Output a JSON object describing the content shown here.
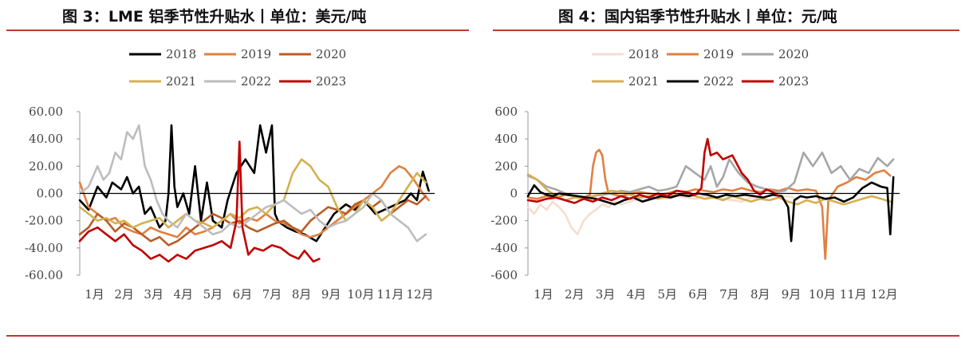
{
  "titles": {
    "left": "图 3：LME 铝季节性升贴水丨单位：美元/吨",
    "right": "图 4：国内铝季节性升贴水丨单位：元/吨"
  },
  "chart_data": [
    {
      "type": "line",
      "title": "图 3：LME 铝季节性升贴水丨单位：美元/吨",
      "xlabel": "",
      "ylabel": "",
      "x_ticks": [
        "1月",
        "2月",
        "3月",
        "4月",
        "5月",
        "6月",
        "7月",
        "8月",
        "9月",
        "10月",
        "11月",
        "12月"
      ],
      "ylim": [
        -60,
        60
      ],
      "y_ticks": [
        "60.00",
        "40.00",
        "20.00",
        "0.00",
        "-20.00",
        "-40.00",
        "-60.00"
      ],
      "legend": "top",
      "series": [
        {
          "name": "2018",
          "color": "#000000",
          "x": [
            0,
            0.3,
            0.6,
            0.9,
            1.1,
            1.4,
            1.6,
            1.8,
            2.0,
            2.2,
            2.4,
            2.7,
            2.9,
            3.0,
            3.1,
            3.2,
            3.3,
            3.5,
            3.7,
            3.9,
            4.1,
            4.3,
            4.5,
            4.8,
            5.0,
            5.3,
            5.6,
            5.9,
            6.1,
            6.3,
            6.5,
            6.6,
            6.7,
            6.8,
            7.0,
            7.3,
            7.6,
            8.0,
            8.3,
            8.6,
            9.0,
            9.3,
            9.6,
            10.0,
            10.5,
            11.0,
            11.2,
            11.4,
            11.6,
            11.8
          ],
          "values": [
            -5,
            -12,
            5,
            -3,
            8,
            3,
            12,
            0,
            5,
            -15,
            -10,
            -25,
            -20,
            0,
            50,
            5,
            -10,
            0,
            -15,
            20,
            -20,
            8,
            -20,
            -25,
            -5,
            15,
            25,
            15,
            50,
            30,
            50,
            -15,
            -20,
            -22,
            -25,
            -28,
            -30,
            -35,
            -25,
            -15,
            -8,
            -12,
            -5,
            -15,
            -10,
            -5,
            0,
            -5,
            16,
            2
          ]
        },
        {
          "name": "2019",
          "color": "#e08040",
          "x": [
            0,
            0.3,
            0.6,
            0.9,
            1.2,
            1.5,
            1.8,
            2.1,
            2.4,
            2.7,
            3.0,
            3.3,
            3.6,
            3.9,
            4.2,
            4.5,
            4.8,
            5.1,
            5.4,
            5.7,
            6.0,
            6.3,
            6.6,
            6.9,
            7.2,
            7.5,
            7.8,
            8.1,
            8.4,
            8.7,
            9.0,
            9.3,
            9.6,
            9.9,
            10.2,
            10.5,
            10.8,
            11.0,
            11.3,
            11.6,
            11.8
          ],
          "values": [
            8,
            -10,
            -15,
            -20,
            -18,
            -25,
            -28,
            -30,
            -25,
            -28,
            -30,
            -32,
            -25,
            -30,
            -28,
            -25,
            -20,
            -15,
            -22,
            -18,
            -20,
            -15,
            -20,
            -22,
            -25,
            -30,
            -32,
            -30,
            -25,
            -20,
            -15,
            -10,
            -5,
            0,
            5,
            15,
            20,
            18,
            10,
            0,
            -5
          ]
        },
        {
          "name": "2020",
          "color": "#b85c28",
          "x": [
            0,
            0.3,
            0.6,
            0.9,
            1.2,
            1.5,
            1.8,
            2.1,
            2.4,
            2.7,
            3.0,
            3.3,
            3.6,
            3.9,
            4.2,
            4.5,
            4.8,
            5.1,
            5.4,
            5.7,
            6.0,
            6.3,
            6.6,
            6.9,
            7.2,
            7.5,
            7.8,
            8.1,
            8.4,
            8.7,
            9.0,
            9.3,
            9.6,
            9.9,
            10.2,
            10.5,
            10.8,
            11.1,
            11.4,
            11.7
          ],
          "values": [
            -30,
            -25,
            -15,
            -20,
            -28,
            -22,
            -25,
            -30,
            -35,
            -32,
            -38,
            -35,
            -30,
            -25,
            -20,
            -15,
            -18,
            -22,
            -20,
            -25,
            -28,
            -25,
            -22,
            -20,
            -25,
            -28,
            -20,
            -15,
            -10,
            -12,
            -15,
            -8,
            -5,
            -10,
            -5,
            -15,
            -10,
            -5,
            -8,
            -2
          ]
        },
        {
          "name": "2021",
          "color": "#d4b050",
          "x": [
            0,
            0.3,
            0.6,
            0.9,
            1.2,
            1.5,
            1.8,
            2.1,
            2.4,
            2.7,
            3.0,
            3.3,
            3.6,
            3.9,
            4.2,
            4.5,
            4.8,
            5.1,
            5.4,
            5.7,
            6.0,
            6.3,
            6.6,
            6.9,
            7.2,
            7.5,
            7.8,
            8.1,
            8.4,
            8.7,
            9.0,
            9.3,
            9.6,
            9.9,
            10.2,
            10.5,
            10.8,
            11.1,
            11.4,
            11.7
          ],
          "values": [
            -10,
            -15,
            -20,
            -18,
            -22,
            -20,
            -25,
            -22,
            -20,
            -18,
            -25,
            -20,
            -15,
            -20,
            -22,
            -25,
            -20,
            -15,
            -18,
            -12,
            -10,
            -15,
            -8,
            -5,
            15,
            25,
            20,
            10,
            5,
            -10,
            -20,
            -15,
            -5,
            -10,
            -20,
            -15,
            -5,
            5,
            15,
            8
          ]
        },
        {
          "name": "2022",
          "color": "#bdbdbd",
          "x": [
            0,
            0.3,
            0.6,
            0.8,
            1.0,
            1.2,
            1.4,
            1.6,
            1.8,
            2.0,
            2.2,
            2.4,
            2.6,
            2.8,
            3.0,
            3.3,
            3.6,
            3.9,
            4.2,
            4.5,
            4.8,
            5.1,
            5.4,
            5.7,
            6.0,
            6.3,
            6.6,
            6.9,
            7.2,
            7.5,
            7.8,
            8.1,
            8.4,
            8.7,
            9.0,
            9.3,
            9.6,
            9.9,
            10.2,
            10.5,
            10.8,
            11.1,
            11.4,
            11.7
          ],
          "values": [
            0,
            5,
            20,
            10,
            15,
            30,
            25,
            45,
            40,
            50,
            20,
            10,
            -5,
            -15,
            -20,
            -25,
            -15,
            -20,
            -25,
            -30,
            -28,
            -22,
            -25,
            -20,
            -15,
            -10,
            -8,
            -5,
            -10,
            -15,
            -12,
            -20,
            -25,
            -22,
            -20,
            -15,
            -10,
            0,
            -5,
            -15,
            -20,
            -25,
            -35,
            -30
          ]
        },
        {
          "name": "2023",
          "color": "#c00000",
          "x": [
            0,
            0.3,
            0.6,
            0.9,
            1.2,
            1.5,
            1.8,
            2.1,
            2.4,
            2.7,
            3.0,
            3.3,
            3.6,
            3.9,
            4.2,
            4.5,
            4.8,
            5.1,
            5.3,
            5.4,
            5.5,
            5.7,
            5.9,
            6.2,
            6.5,
            6.8,
            7.1,
            7.4,
            7.6,
            7.9,
            8.1
          ],
          "values": [
            -35,
            -28,
            -25,
            -30,
            -35,
            -30,
            -38,
            -42,
            -48,
            -45,
            -50,
            -45,
            -48,
            -42,
            -40,
            -38,
            -35,
            -40,
            -20,
            38,
            -25,
            -45,
            -40,
            -42,
            -38,
            -40,
            -45,
            -48,
            -42,
            -50,
            -48
          ]
        }
      ]
    },
    {
      "type": "line",
      "title": "图 4：国内铝季节性升贴水丨单位：元/吨",
      "xlabel": "",
      "ylabel": "",
      "x_ticks": [
        "1月",
        "2月",
        "3月",
        "4月",
        "5月",
        "6月",
        "7月",
        "8月",
        "9月",
        "10月",
        "11月",
        "12月"
      ],
      "ylim": [
        -600,
        600
      ],
      "y_ticks": [
        "600",
        "400",
        "200",
        "0",
        "-200",
        "-400",
        "-600"
      ],
      "legend": "top",
      "series": [
        {
          "name": "2018",
          "color": "#f5ddd0",
          "x": [
            0,
            0.2,
            0.4,
            0.6,
            0.8,
            1.0,
            1.2,
            1.4,
            1.6,
            1.8,
            2.0,
            2.2,
            2.4,
            2.6,
            2.8,
            3.0,
            3.3,
            3.6,
            3.9,
            4.2,
            4.5,
            4.8,
            5.1,
            5.4,
            5.7,
            6.0,
            6.3,
            6.6,
            6.9,
            7.2,
            7.5,
            7.8,
            8.1,
            8.4,
            8.7
          ],
          "values": [
            -100,
            -150,
            -80,
            -120,
            -60,
            -100,
            -150,
            -250,
            -300,
            -200,
            -150,
            -120,
            -80,
            -100,
            -60,
            -80,
            -60,
            -40,
            -50,
            -30,
            -40,
            -20,
            -30,
            -40,
            -20,
            -30,
            -40,
            -50,
            -60,
            -30,
            -40,
            -50,
            -30,
            -20,
            -40
          ]
        },
        {
          "name": "2019",
          "color": "#e08040",
          "x": [
            0,
            0.3,
            0.6,
            0.9,
            1.2,
            1.5,
            1.8,
            2.0,
            2.1,
            2.2,
            2.3,
            2.4,
            2.5,
            2.6,
            2.8,
            3.0,
            3.3,
            3.6,
            3.9,
            4.2,
            4.5,
            4.8,
            5.1,
            5.4,
            5.7,
            6.0,
            6.3,
            6.6,
            6.9,
            7.2,
            7.5,
            7.8,
            8.1,
            8.4,
            8.7,
            9.0,
            9.3,
            9.5,
            9.6,
            9.7,
            10.0,
            10.3,
            10.6,
            10.9,
            11.2,
            11.5,
            11.7
          ],
          "values": [
            -30,
            -40,
            -20,
            -30,
            -10,
            -20,
            -30,
            -10,
            200,
            300,
            320,
            280,
            100,
            0,
            -10,
            -20,
            -5,
            10,
            0,
            -10,
            0,
            20,
            10,
            30,
            20,
            10,
            30,
            20,
            40,
            20,
            10,
            30,
            20,
            40,
            20,
            30,
            20,
            -100,
            -480,
            -50,
            50,
            80,
            120,
            100,
            150,
            170,
            130
          ]
        },
        {
          "name": "2020",
          "color": "#a6a6a6",
          "x": [
            0,
            0.3,
            0.6,
            0.9,
            1.2,
            1.5,
            1.8,
            2.1,
            2.4,
            2.7,
            3.0,
            3.3,
            3.6,
            3.9,
            4.2,
            4.5,
            4.8,
            5.1,
            5.4,
            5.7,
            5.9,
            6.1,
            6.3,
            6.5,
            6.8,
            7.1,
            7.4,
            7.7,
            8.0,
            8.3,
            8.6,
            8.9,
            9.2,
            9.5,
            9.8,
            10.1,
            10.4,
            10.7,
            11.0,
            11.3,
            11.6,
            11.8
          ],
          "values": [
            130,
            100,
            50,
            30,
            0,
            -20,
            -40,
            -20,
            -10,
            0,
            20,
            10,
            30,
            50,
            20,
            30,
            50,
            200,
            150,
            100,
            200,
            50,
            120,
            250,
            150,
            80,
            50,
            30,
            10,
            20,
            80,
            300,
            200,
            300,
            150,
            200,
            100,
            180,
            150,
            260,
            200,
            250
          ]
        },
        {
          "name": "2021",
          "color": "#d4b050",
          "x": [
            0,
            0.3,
            0.6,
            0.9,
            1.2,
            1.5,
            1.8,
            2.1,
            2.4,
            2.7,
            3.0,
            3.3,
            3.6,
            3.9,
            4.2,
            4.5,
            4.8,
            5.1,
            5.4,
            5.7,
            6.0,
            6.3,
            6.6,
            6.9,
            7.2,
            7.5,
            7.8,
            8.1,
            8.4,
            8.7,
            9.0,
            9.3,
            9.6,
            9.9,
            10.2,
            10.5,
            10.8,
            11.1,
            11.4,
            11.7
          ],
          "values": [
            140,
            100,
            30,
            -20,
            -50,
            -30,
            -40,
            -20,
            0,
            20,
            10,
            -10,
            -30,
            -20,
            -40,
            -20,
            -10,
            0,
            -20,
            -40,
            -30,
            -50,
            -20,
            -40,
            -60,
            -40,
            -50,
            -30,
            -60,
            -80,
            -50,
            -70,
            -40,
            -60,
            -80,
            -60,
            -40,
            -20,
            -40,
            -60
          ]
        },
        {
          "name": "2022",
          "color": "#000000",
          "x": [
            0,
            0.2,
            0.4,
            0.6,
            0.8,
            1.0,
            1.3,
            1.6,
            1.9,
            2.2,
            2.5,
            2.8,
            3.1,
            3.4,
            3.7,
            4.0,
            4.3,
            4.6,
            4.9,
            5.2,
            5.5,
            5.8,
            6.1,
            6.4,
            6.7,
            7.0,
            7.3,
            7.6,
            7.9,
            8.2,
            8.4,
            8.5,
            8.6,
            8.8,
            9.0,
            9.3,
            9.6,
            9.9,
            10.2,
            10.5,
            10.8,
            11.1,
            11.4,
            11.6,
            11.7,
            11.8
          ],
          "values": [
            -20,
            60,
            10,
            -10,
            -20,
            0,
            -10,
            -20,
            -30,
            -40,
            -60,
            -80,
            -50,
            -30,
            -60,
            -40,
            -20,
            -30,
            -10,
            -20,
            0,
            -10,
            -30,
            -10,
            -20,
            -10,
            -20,
            -30,
            -10,
            -20,
            -100,
            -350,
            -50,
            -20,
            -30,
            -20,
            -40,
            -30,
            -60,
            -30,
            40,
            80,
            50,
            40,
            -300,
            120
          ]
        },
        {
          "name": "2023",
          "color": "#c00000",
          "x": [
            0,
            0.3,
            0.6,
            0.9,
            1.2,
            1.5,
            1.8,
            2.1,
            2.4,
            2.7,
            3.0,
            3.3,
            3.6,
            3.9,
            4.2,
            4.5,
            4.8,
            5.1,
            5.4,
            5.6,
            5.7,
            5.8,
            5.9,
            6.1,
            6.3,
            6.6,
            6.9,
            7.1,
            7.3,
            7.5,
            7.7,
            7.9,
            8.1
          ],
          "values": [
            -50,
            -60,
            -40,
            -30,
            -50,
            -70,
            -40,
            -60,
            -30,
            -50,
            -20,
            -40,
            -10,
            -30,
            0,
            -20,
            20,
            10,
            -10,
            40,
            300,
            400,
            280,
            300,
            250,
            280,
            150,
            100,
            20,
            -10,
            30,
            10,
            -20
          ]
        }
      ]
    }
  ]
}
